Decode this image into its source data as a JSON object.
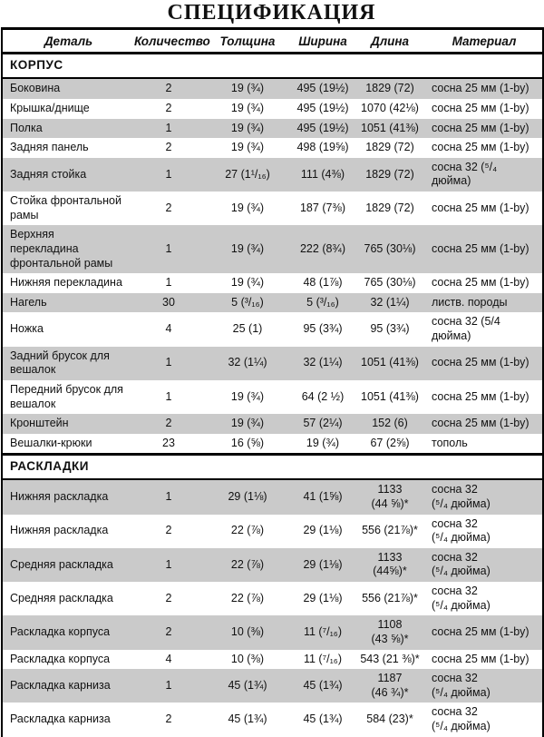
{
  "title": "СПЕЦИФИКАЦИЯ",
  "table": {
    "columns": {
      "part": "Деталь",
      "quantity": "Количество",
      "thickness": "Толщина",
      "width": "Ширина",
      "length": "Длина",
      "material": "Материал"
    },
    "sections": [
      {
        "name": "КОРПУС",
        "rows": [
          {
            "part": "Боковина",
            "qty": "2",
            "thickness": "19 (¾)",
            "width": "495 (19½)",
            "length": "1829 (72)",
            "material": "сосна 25 мм (1-by)"
          },
          {
            "part": "Крышка/днище",
            "qty": "2",
            "thickness": "19 (¾)",
            "width": "495 (19½)",
            "length": "1070 (42⅛)",
            "material": "сосна 25 мм (1-by)"
          },
          {
            "part": "Полка",
            "qty": "1",
            "thickness": "19 (¾)",
            "width": "495 (19½)",
            "length": "1051 (41⅜)",
            "material": "сосна 25 мм (1-by)"
          },
          {
            "part": "Задняя панель",
            "qty": "2",
            "thickness": "19 (¾)",
            "width": "498 (19⅝)",
            "length": "1829 (72)",
            "material": "сосна 25 мм (1-by)"
          },
          {
            "part": "Задняя стойка",
            "qty": "1",
            "thickness": "27 (1¹/₁₆)",
            "width": "111 (4⅜)",
            "length": "1829 (72)",
            "material": "сосна 32 (⁵/₄\nдюйма)"
          },
          {
            "part": "Стойка фронтальной\nрамы",
            "qty": "2",
            "thickness": "19 (¾)",
            "width": "187 (7⅜)",
            "length": "1829 (72)",
            "material": "сосна 25 мм (1-by)"
          },
          {
            "part": "Верхняя\nперекладина\nфронтальной рамы",
            "qty": "1",
            "thickness": "19 (¾)",
            "width": "222 (8¾)",
            "length": "765 (30⅛)",
            "material": "сосна 25 мм (1-by)"
          },
          {
            "part": "Нижняя перекладина",
            "qty": "1",
            "thickness": "19 (¾)",
            "width": "48 (1⅞)",
            "length": "765 (30⅛)",
            "material": "сосна 25 мм (1-by)"
          },
          {
            "part": "Нагель",
            "qty": "30",
            "thickness": "5 (³/₁₆)",
            "width": "5 (³/₁₆)",
            "length": "32 (1¼)",
            "material": "листв. породы"
          },
          {
            "part": "Ножка",
            "qty": "4",
            "thickness": "25 (1)",
            "width": "95 (3¾)",
            "length": "95 (3¾)",
            "material": "сосна 32 (5/4\nдюйма)"
          },
          {
            "part": "Задний брусок для\nвешалок",
            "qty": "1",
            "thickness": "32 (1¼)",
            "width": "32 (1¼)",
            "length": "1051 (41⅜)",
            "material": "сосна 25 мм (1-by)"
          },
          {
            "part": "Передний брусок для\nвешалок",
            "qty": "1",
            "thickness": "19 (¾)",
            "width": "64 (2 ½)",
            "length": "1051 (41⅜)",
            "material": "сосна 25 мм (1-by)"
          },
          {
            "part": "Кронштейн",
            "qty": "2",
            "thickness": "19 (¾)",
            "width": "57 (2¼)",
            "length": "152 (6)",
            "material": "сосна 25 мм (1-by)"
          },
          {
            "part": "Вешалки-крюки",
            "qty": "23",
            "thickness": "16 (⅝)",
            "width": "19 (¾)",
            "length": "67 (2⅝)",
            "material": "тополь"
          }
        ]
      },
      {
        "name": "РАСКЛАДКИ",
        "rows": [
          {
            "part": "Нижняя раскладка",
            "qty": "1",
            "thickness": "29 (1⅛)",
            "width": "41 (1⅝)",
            "length": "1133\n(44 ⅝)*",
            "material": "сосна 32\n(⁵/₄ дюйма)"
          },
          {
            "part": "Нижняя раскладка",
            "qty": "2",
            "thickness": "22 (⅞)",
            "width": "29 (1⅛)",
            "length": "556 (21⅞)*",
            "material": "сосна 32\n(⁵/₄ дюйма)"
          },
          {
            "part": "Средняя раскладка",
            "qty": "1",
            "thickness": "22 (⅞)",
            "width": "29 (1⅛)",
            "length": "1133\n(44⅝)*",
            "material": "сосна 32\n(⁵/₄ дюйма)"
          },
          {
            "part": "Средняя раскладка",
            "qty": "2",
            "thickness": "22 (⅞)",
            "width": "29 (1⅛)",
            "length": "556 (21⅞)*",
            "material": "сосна 32\n(⁵/₄ дюйма)"
          },
          {
            "part": "Раскладка корпуса",
            "qty": "2",
            "thickness": "10 (⅜)",
            "width": "11 (⁷/₁₆)",
            "length": "1108\n(43 ⅝)*",
            "material": "сосна 25 мм (1-by)"
          },
          {
            "part": "Раскладка корпуса",
            "qty": "4",
            "thickness": "10 (⅜)",
            "width": "11 (⁷/₁₆)",
            "length": "543 (21 ⅜)*",
            "material": "сосна 25 мм (1-by)"
          },
          {
            "part": "Раскладка карниза",
            "qty": "1",
            "thickness": "45 (1¾)",
            "width": "45 (1¾)",
            "length": "1187\n(46 ¾)*",
            "material": "сосна 32\n(⁵/₄ дюйма)"
          },
          {
            "part": "Раскладка карниза",
            "qty": "2",
            "thickness": "45 (1¾)",
            "width": "45 (1¾)",
            "length": "584 (23)*",
            "material": "сосна 32\n(⁵/₄ дюйма)"
          }
        ]
      }
    ]
  }
}
